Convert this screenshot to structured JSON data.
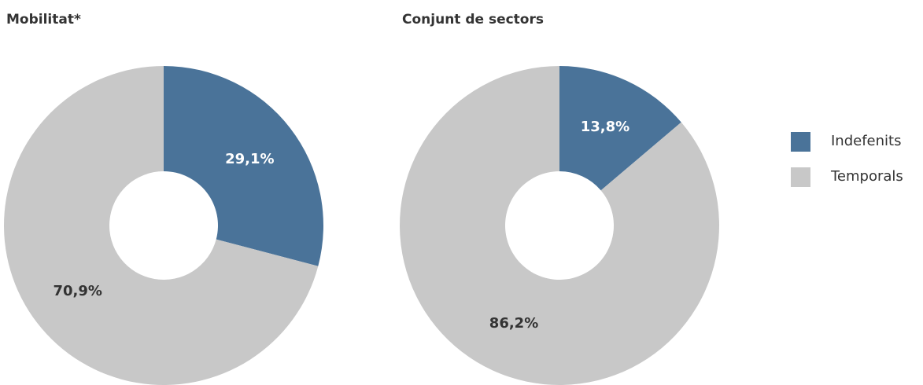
{
  "chart_data": [
    {
      "type": "pie",
      "title": "Mobilitat*",
      "values": [
        29.1,
        70.9
      ],
      "value_labels": [
        "29,1%",
        "70,9%"
      ],
      "colors": [
        "#4a7399",
        "#c8c8c8"
      ],
      "label_colors": [
        "#ffffff",
        "#333333"
      ]
    },
    {
      "type": "pie",
      "title": "Conjunt de sectors",
      "values": [
        13.8,
        86.2
      ],
      "value_labels": [
        "13,8%",
        "86,2%"
      ],
      "colors": [
        "#4a7399",
        "#c8c8c8"
      ],
      "label_colors": [
        "#ffffff",
        "#333333"
      ]
    }
  ],
  "legend": {
    "categories": [
      "Indefenits",
      "Temporals"
    ],
    "colors": [
      "#4a7399",
      "#c8c8c8"
    ]
  }
}
